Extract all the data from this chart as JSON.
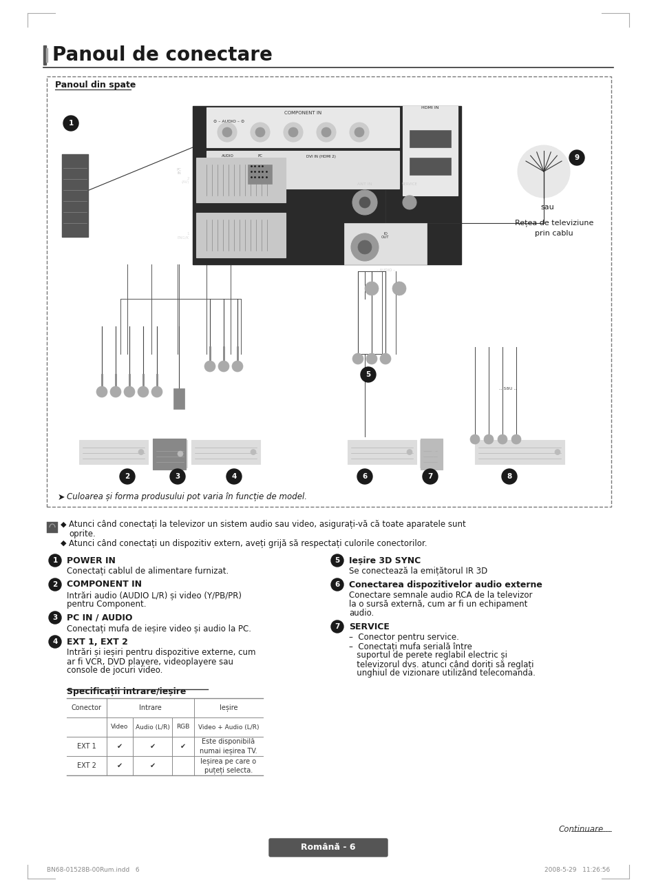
{
  "title": "Panoul de conectare",
  "page_bg": "#ffffff",
  "title_color": "#1a1a1a",
  "title_fontsize": 20,
  "subtitle_box_label": "Panoul din spate",
  "note_line1": "Atunci când conectați la televizor un sistem audio sau video, asigurați-vă că toate aparatele sunt",
  "note_line1b": "oprite.",
  "note_line2": "Atunci când conectați un dispozitiv extern, aveți grijă să respectați culorile conectorilor.",
  "items_left": [
    {
      "num": "1",
      "title": "POWER IN",
      "desc": [
        "Conectați cablul de alimentare furnizat."
      ]
    },
    {
      "num": "2",
      "title": "COMPONENT IN",
      "desc": [
        "Intrări audio (AUDIO L/R) și video (Y/PB/PR)",
        "pentru Component."
      ]
    },
    {
      "num": "3",
      "title": "PC IN / AUDIO",
      "desc": [
        "Conectați mufa de ieșire video și audio la PC."
      ]
    },
    {
      "num": "4",
      "title": "EXT 1, EXT 2",
      "desc": [
        "Intrări și ieșiri pentru dispozitive externe, cum",
        "ar fi VCR, DVD playere, videoplayere sau",
        "console de jocuri video."
      ]
    }
  ],
  "items_right": [
    {
      "num": "5",
      "title": "Ieșire 3D SYNC",
      "desc": [
        "Se conectează la emițătorul IR 3D"
      ]
    },
    {
      "num": "6",
      "title": "Conectarea dispozitivelor audio externe",
      "desc": [
        "Conectare semnale audio RCA de la televizor",
        "la o sursă externă, cum ar fi un echipament",
        "audio."
      ]
    },
    {
      "num": "7",
      "title": "SERVICE",
      "desc": [
        "–  Conector pentru service.",
        "–  Conectați mufa serială între",
        "   suportul de perete reglabil electric și",
        "   televizorul dvs. atunci când doriți să reglați",
        "   unghiul de vizionare utilizând telecomanda."
      ]
    }
  ],
  "spec_title": "Specificații intrare/ieșire",
  "spec_rows": [
    [
      "EXT 1",
      "✔",
      "✔",
      "✔",
      "Este disponibilă\nnumai ieșirea TV."
    ],
    [
      "EXT 2",
      "✔",
      "✔",
      "",
      "Ieșirea pe care o\npuțeți selecta."
    ]
  ],
  "footer_text": "Continuare...",
  "bottom_bar_text": "Română - 6",
  "bottom_left_text": "BN68-01528B-00Rum.indd   6",
  "bottom_right_text": "2008-5-29   11:26:56",
  "diagram_note": "Culoarea și forma produsului pot varia în funcție de model.",
  "antenna_sau": "sau",
  "antenna_label1": "Rețea de televiziune",
  "antenna_label2": "prin cablu"
}
